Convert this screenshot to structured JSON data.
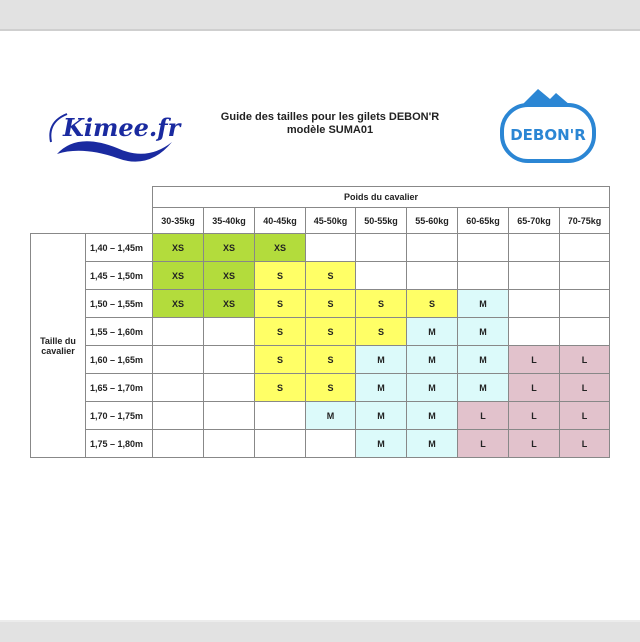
{
  "header": {
    "title_line1": "Guide des tailles pour les gilets DEBON'R",
    "title_line2": "modèle SUMA01",
    "logo_left": "Kimee.fr",
    "logo_right": "DEBON'R"
  },
  "colors": {
    "XS": "#b3dc3c",
    "S": "#ffff66",
    "M": "#dcfafa",
    "L": "#e2c2cc"
  },
  "table": {
    "weight_header": "Poids du cavalier",
    "height_header": "Taille du cavalier",
    "weights": [
      "30-35kg",
      "35-40kg",
      "40-45kg",
      "45-50kg",
      "50-55kg",
      "55-60kg",
      "60-65kg",
      "65-70kg",
      "70-75kg"
    ],
    "rows": [
      {
        "height": "1,40 – 1,45m",
        "sizes": [
          "XS",
          "XS",
          "XS",
          "",
          "",
          "",
          "",
          "",
          ""
        ]
      },
      {
        "height": "1,45 – 1,50m",
        "sizes": [
          "XS",
          "XS",
          "S",
          "S",
          "",
          "",
          "",
          "",
          ""
        ]
      },
      {
        "height": "1,50 – 1,55m",
        "sizes": [
          "XS",
          "XS",
          "S",
          "S",
          "S",
          "S",
          "M",
          "",
          ""
        ]
      },
      {
        "height": "1,55 – 1,60m",
        "sizes": [
          "",
          "",
          "S",
          "S",
          "S",
          "M",
          "M",
          "",
          ""
        ]
      },
      {
        "height": "1,60 – 1,65m",
        "sizes": [
          "",
          "",
          "S",
          "S",
          "M",
          "M",
          "M",
          "L",
          "L"
        ]
      },
      {
        "height": "1,65 – 1,70m",
        "sizes": [
          "",
          "",
          "S",
          "S",
          "M",
          "M",
          "M",
          "L",
          "L"
        ]
      },
      {
        "height": "1,70 – 1,75m",
        "sizes": [
          "",
          "",
          "",
          "M",
          "M",
          "M",
          "L",
          "L",
          "L"
        ]
      },
      {
        "height": "1,75 – 1,80m",
        "sizes": [
          "",
          "",
          "",
          "",
          "M",
          "M",
          "L",
          "L",
          "L"
        ]
      }
    ]
  }
}
